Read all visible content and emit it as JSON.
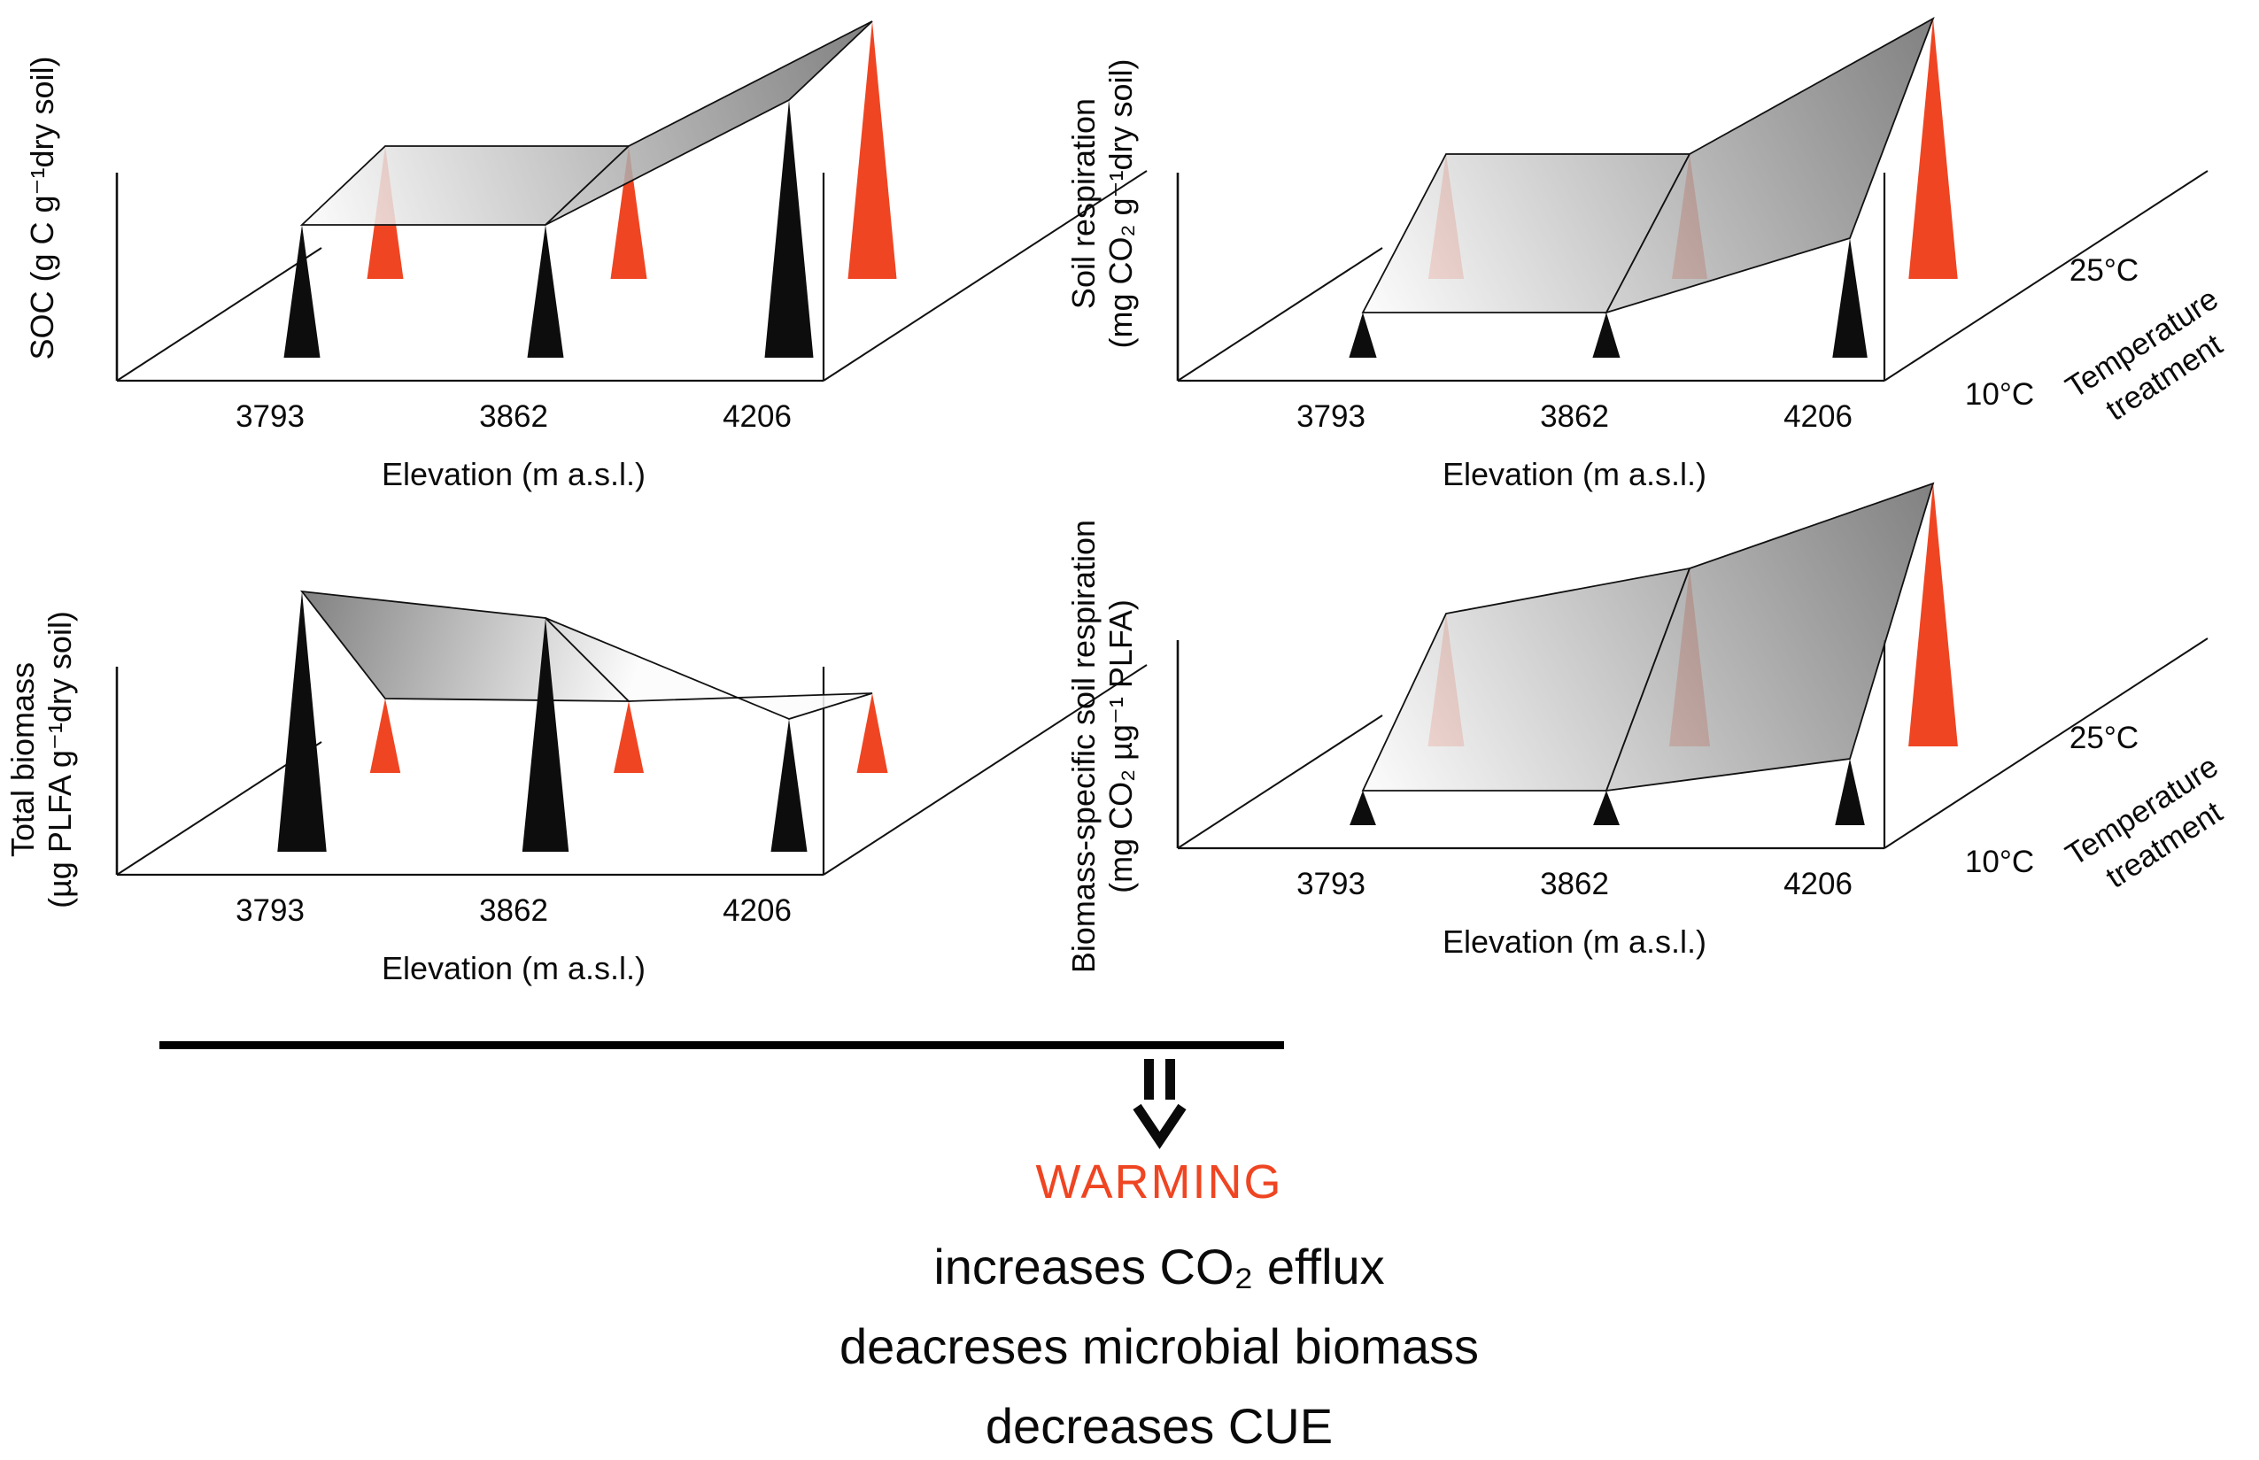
{
  "colors": {
    "accent_orange": "#EF4522",
    "cone_black": "#0d0d0d",
    "surface_light": "#fcfcfc",
    "surface_dark": "#6b6b6b",
    "line_black": "#111111"
  },
  "chart_data": [
    {
      "id": "soc",
      "type": "3d-cone-surface",
      "ylabel_lines": [
        "SOC (g C g⁻¹dry soil)"
      ],
      "xlabel": "Elevation (m a.s.l.)",
      "categories": [
        "3793",
        "3862",
        "4206"
      ],
      "value_scale": "relative (no numeric value axis shown)",
      "series": [
        {
          "name": "10°C",
          "color": "#0d0d0d",
          "values": [
            0.5,
            0.5,
            0.97
          ]
        },
        {
          "name": "25°C",
          "color": "#EF4522",
          "values": [
            0.5,
            0.5,
            0.97
          ]
        }
      ],
      "temperature_axis": null
    },
    {
      "id": "soil-respiration",
      "type": "3d-cone-surface",
      "ylabel_lines": [
        "Soil respiration",
        "(mg CO₂ g⁻¹dry soil)"
      ],
      "xlabel": "Elevation (m a.s.l.)",
      "categories": [
        "3793",
        "3862",
        "4206"
      ],
      "value_scale": "relative (no numeric value axis shown)",
      "series": [
        {
          "name": "10°C",
          "color": "#0d0d0d",
          "values": [
            0.17,
            0.17,
            0.45
          ]
        },
        {
          "name": "25°C",
          "color": "#EF4522",
          "values": [
            0.47,
            0.47,
            0.98
          ]
        }
      ],
      "temperature_axis": {
        "ticks": [
          "10°C",
          "25°C"
        ],
        "label_lines": [
          "Temperature",
          "treatment"
        ]
      }
    },
    {
      "id": "total-biomass",
      "type": "3d-cone-surface",
      "ylabel_lines": [
        "Total biomass",
        "(µg PLFA g⁻¹dry soil)"
      ],
      "xlabel": "Elevation (m a.s.l.)",
      "categories": [
        "3793",
        "3862",
        "4206"
      ],
      "value_scale": "relative (no numeric value axis shown)",
      "series": [
        {
          "name": "10°C",
          "color": "#0d0d0d",
          "values": [
            0.98,
            0.88,
            0.5
          ]
        },
        {
          "name": "25°C",
          "color": "#EF4522",
          "values": [
            0.28,
            0.27,
            0.3
          ]
        }
      ],
      "temperature_axis": null
    },
    {
      "id": "biomass-specific-respiration",
      "type": "3d-cone-surface",
      "ylabel_lines": [
        "Biomass-specific soil respiration",
        "(mg CO₂ µg⁻¹ PLFA)"
      ],
      "xlabel": "Elevation (m a.s.l.)",
      "categories": [
        "3793",
        "3862",
        "4206"
      ],
      "value_scale": "relative (no numeric value axis shown)",
      "series": [
        {
          "name": "10°C",
          "color": "#0d0d0d",
          "values": [
            0.13,
            0.13,
            0.25
          ]
        },
        {
          "name": "25°C",
          "color": "#EF4522",
          "values": [
            0.5,
            0.67,
            0.99
          ]
        }
      ],
      "temperature_axis": {
        "ticks": [
          "10°C",
          "25°C"
        ],
        "label_lines": [
          "Temperature",
          "treatment"
        ]
      }
    }
  ],
  "footer": {
    "warming_label": "WARMING",
    "lines": [
      "increases CO₂ efflux",
      "deacreses microbial biomass",
      "decreases CUE"
    ]
  }
}
